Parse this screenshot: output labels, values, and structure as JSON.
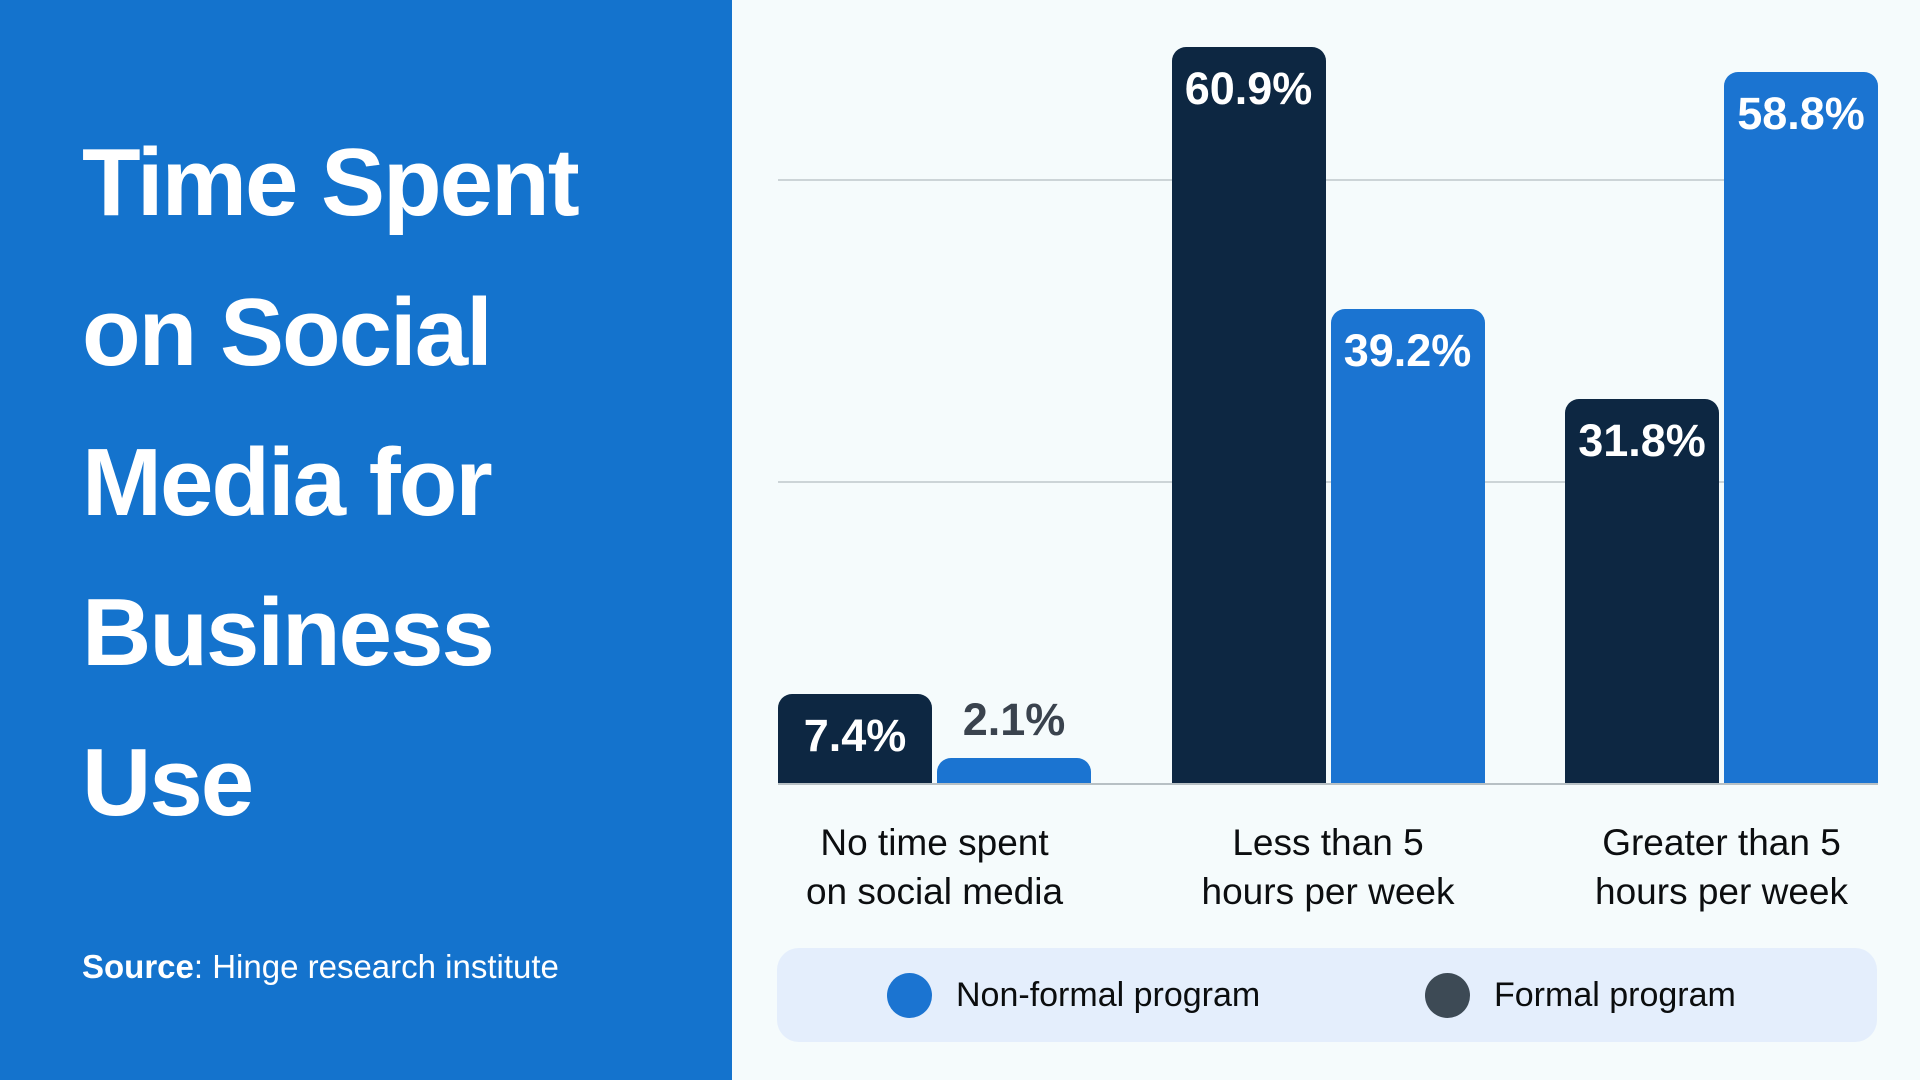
{
  "sidebar": {
    "title_lines": [
      "Time Spent",
      "on Social",
      "Media for",
      "Business",
      "Use"
    ],
    "title_full": "Time Spent on Social Media for Business Use",
    "source_label": "Source",
    "source_rest": ": Hinge research institute"
  },
  "chart_data": {
    "type": "bar",
    "categories": [
      "No time spent\non social media",
      "Less than 5\nhours per week",
      "Greater than 5\nhours per week"
    ],
    "series": [
      {
        "name": "Formal program",
        "color": "#0d2742",
        "values": [
          7.4,
          60.9,
          31.8
        ]
      },
      {
        "name": "Non-formal program",
        "color": "#1b74d1",
        "values": [
          2.1,
          39.2,
          58.8
        ]
      }
    ],
    "value_suffix": "%",
    "ylim": [
      0,
      64.8
    ],
    "gridlines_percent": [
      25,
      50
    ],
    "grid": "horizontal-lines-only",
    "legend_position": "bottom",
    "value_labels": "on-bars"
  },
  "legend": {
    "items": [
      {
        "label": "Non-formal program",
        "color": "#1b74d1"
      },
      {
        "label": "Formal program",
        "color": "#3d4a55"
      }
    ]
  },
  "colors": {
    "sidebar_bg": "#1473cd",
    "chart_bg": "#f5fbfc",
    "bar_dark": "#0d2742",
    "bar_blue": "#1b74d1",
    "outside_label": "#3a434e",
    "legend_bg": "#e4eefc",
    "gridline": "#ccd4d7",
    "baseline": "#b7c0c4",
    "text_light": "#ffffff",
    "text_dark": "#0c0e10"
  }
}
